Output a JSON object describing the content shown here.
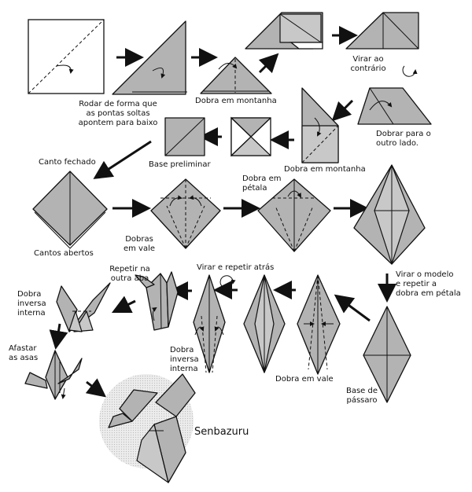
{
  "labels": {
    "rodar": [
      "Rodar de forma que",
      "as pontas soltas",
      "apontem para baixo"
    ],
    "dobra_montanha_1": "Dobra em montanha",
    "virar_contrario": [
      "Virar ao",
      "contrário"
    ],
    "dobrar_outro_lado": [
      "Dobrar para o",
      "outro lado."
    ],
    "base_preliminar": "Base preliminar",
    "dobra_montanha_2": "Dobra em montanha",
    "canto_fechado": "Canto fechado",
    "cantos_abertos": "Cantos abertos",
    "dobras_vale": [
      "Dobras",
      "em vale"
    ],
    "dobra_petala": [
      "Dobra em",
      "pétala"
    ],
    "virar_modelo": [
      "Virar o modelo",
      "e repetir a",
      "dobra em pétala"
    ],
    "virar_repetir_atras": "Virar e repetir atrás",
    "repetir_outra_aba": [
      "Repetir na",
      "outra aba"
    ],
    "dobra_inversa_interna_1": [
      "Dobra",
      "inversa",
      "interna"
    ],
    "dobra_inversa_interna_2": [
      "Dobra",
      "inversa",
      "interna"
    ],
    "afastar_asas": [
      "Afastar",
      "as asas"
    ],
    "dobra_vale": "Dobra em vale",
    "base_passaro": [
      "Base de",
      "pássaro"
    ],
    "senbazuru": "Senbazuru"
  },
  "icons": [
    "rotate-arrow-icon",
    "flip-over-icon",
    "step-arrow-icon",
    "fold-arrow-icon"
  ],
  "colors": {
    "paper": "#b3b3b3",
    "outline": "#111111",
    "senbazuru_circle": "#e6e6e6"
  }
}
